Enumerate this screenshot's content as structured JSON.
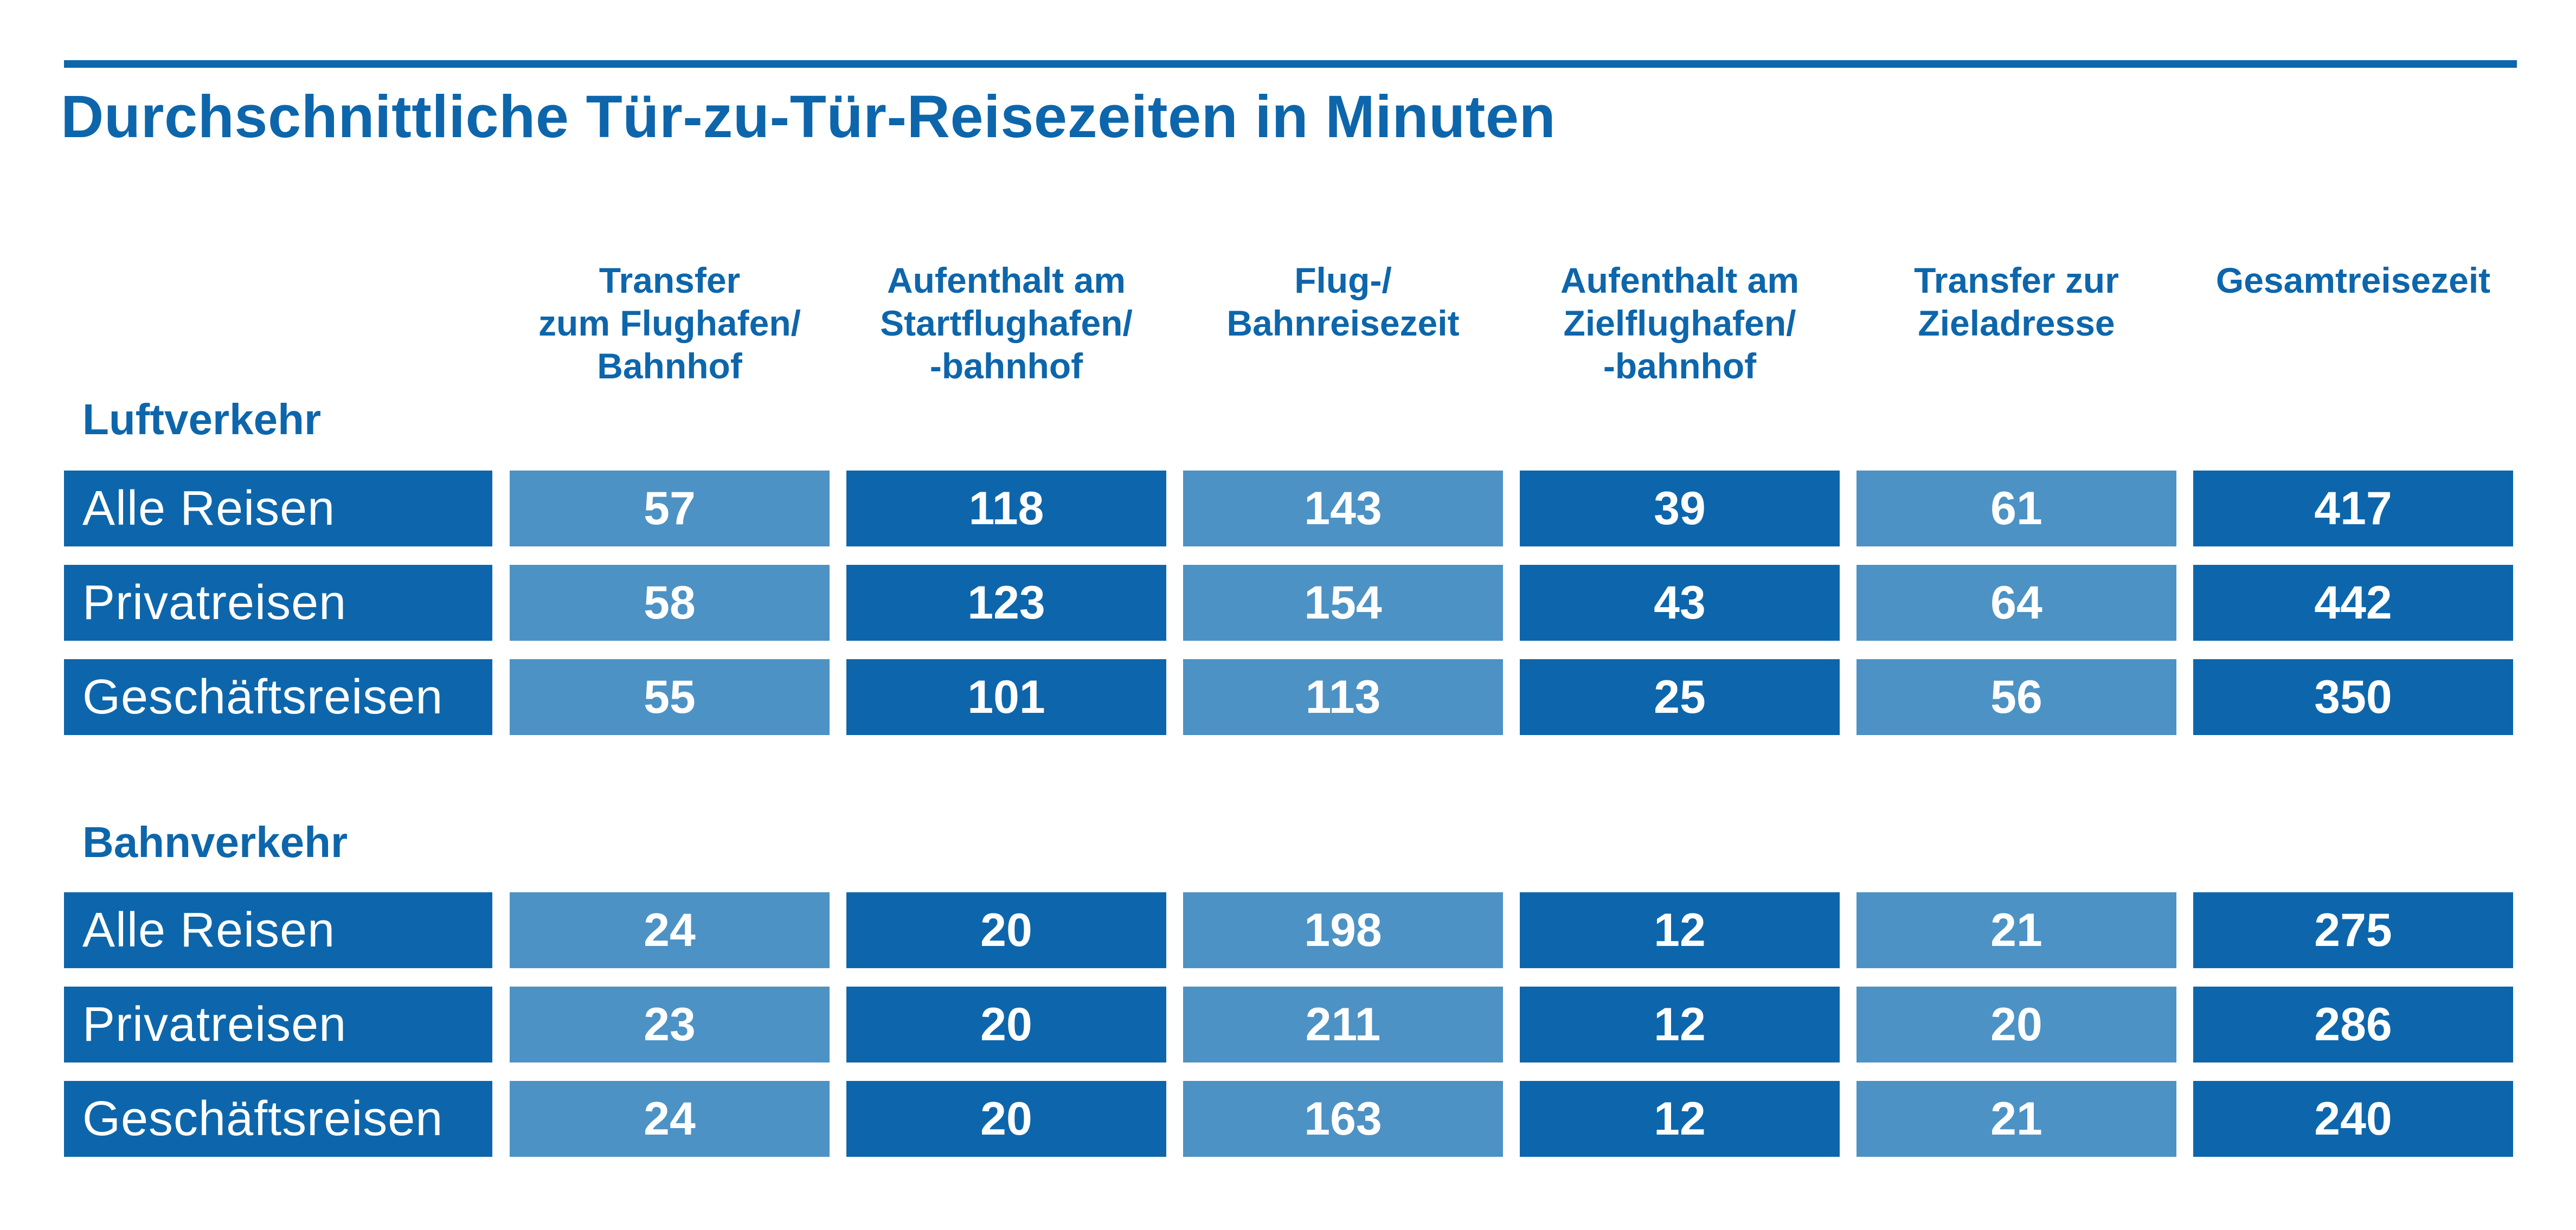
{
  "title": "Durchschnittliche Tür-zu-Tür-Reisezeiten in Minuten",
  "colors": {
    "dark": "#0d66ab",
    "light": "#4d92c4",
    "text": "#0d66ab"
  },
  "columns": [
    "Transfer\nzum Flughafen/\nBahnhof",
    "Aufenthalt am\nStartflughafen/\n-bahnhof",
    "Flug-/\nBahnreisezeit",
    "Aufenthalt am\nZielflughafen/\n-bahnhof",
    "Transfer zur\nZieladresse",
    "Gesamtreisezeit"
  ],
  "sections": [
    {
      "label": "Luftverkehr",
      "rows": [
        {
          "label": "Alle Reisen",
          "values": [
            "57",
            "118",
            "143",
            "39",
            "61",
            "417"
          ]
        },
        {
          "label": "Privatreisen",
          "values": [
            "58",
            "123",
            "154",
            "43",
            "64",
            "442"
          ]
        },
        {
          "label": "Geschäftsreisen",
          "values": [
            "55",
            "101",
            "113",
            "25",
            "56",
            "350"
          ]
        }
      ]
    },
    {
      "label": "Bahnverkehr",
      "rows": [
        {
          "label": "Alle Reisen",
          "values": [
            "24",
            "20",
            "198",
            "12",
            "21",
            "275"
          ]
        },
        {
          "label": "Privatreisen",
          "values": [
            "23",
            "20",
            "211",
            "12",
            "20",
            "286"
          ]
        },
        {
          "label": "Geschäftsreisen",
          "values": [
            "24",
            "20",
            "163",
            "12",
            "21",
            "240"
          ]
        }
      ]
    }
  ],
  "chart_data": {
    "type": "table",
    "title": "Durchschnittliche Tür-zu-Tür-Reisezeiten in Minuten",
    "columns": [
      "Transfer zum Flughafen/ Bahnhof",
      "Aufenthalt am Startflughafen/ -bahnhof",
      "Flug-/ Bahnreisezeit",
      "Aufenthalt am Zielflughafen/ -bahnhof",
      "Transfer zur Zieladresse",
      "Gesamtreisezeit"
    ],
    "groups": [
      {
        "name": "Luftverkehr",
        "rows": [
          {
            "name": "Alle Reisen",
            "values": [
              57,
              118,
              143,
              39,
              61,
              417
            ]
          },
          {
            "name": "Privatreisen",
            "values": [
              58,
              123,
              154,
              43,
              64,
              442
            ]
          },
          {
            "name": "Geschäftsreisen",
            "values": [
              55,
              101,
              113,
              25,
              56,
              350
            ]
          }
        ]
      },
      {
        "name": "Bahnverkehr",
        "rows": [
          {
            "name": "Alle Reisen",
            "values": [
              24,
              20,
              198,
              12,
              21,
              275
            ]
          },
          {
            "name": "Privatreisen",
            "values": [
              23,
              20,
              211,
              12,
              20,
              286
            ]
          },
          {
            "name": "Geschäftsreisen",
            "values": [
              24,
              20,
              163,
              12,
              21,
              240
            ]
          }
        ]
      }
    ]
  }
}
